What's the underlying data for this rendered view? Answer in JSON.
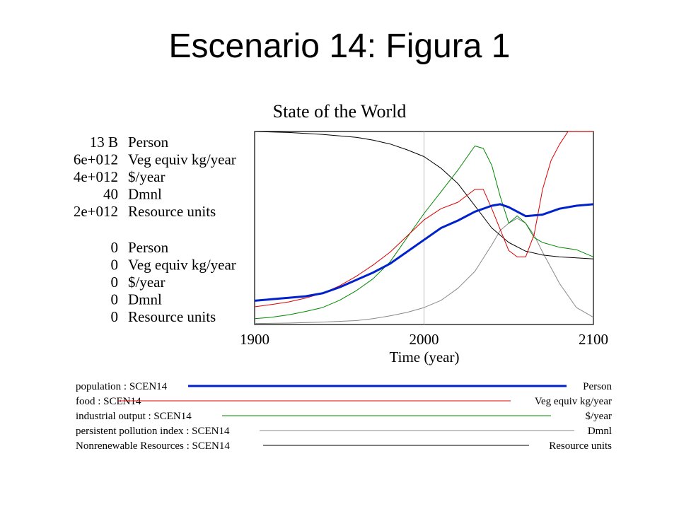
{
  "slide": {
    "title": "Escenario 14: Figura 1"
  },
  "colors": {
    "population": "#0022cc",
    "food": "#dd0000",
    "industrial": "#008800",
    "pollution": "#888888",
    "resources": "#000000",
    "grid": "#bbbbbb"
  },
  "chart_data": {
    "type": "line",
    "title": "State of the World",
    "xlabel": "Time (year)",
    "xlim": [
      1900,
      2100
    ],
    "x_ticks": [
      "1900",
      "2000",
      "2100"
    ],
    "grid": "vertical line at 2000",
    "legend_placement": "bottom",
    "axes_top": [
      {
        "value": "13 B",
        "unit": "Person"
      },
      {
        "value": "6e+012",
        "unit": "Veg equiv kg/year"
      },
      {
        "value": "4e+012",
        "unit": "$/year"
      },
      {
        "value": "40",
        "unit": "Dmnl"
      },
      {
        "value": "2e+012",
        "unit": "Resource units"
      }
    ],
    "axes_bottom": [
      {
        "value": "0",
        "unit": "Person"
      },
      {
        "value": "0",
        "unit": "Veg equiv kg/year"
      },
      {
        "value": "0",
        "unit": "$/year"
      },
      {
        "value": "0",
        "unit": "Dmnl"
      },
      {
        "value": "0",
        "unit": "Resource units"
      }
    ],
    "series": [
      {
        "key": "population",
        "name": "population : SCEN14",
        "unit": "Person",
        "ymax": 13000000000,
        "x": [
          1900,
          1910,
          1920,
          1930,
          1940,
          1950,
          1960,
          1970,
          1980,
          1990,
          2000,
          2010,
          2020,
          2030,
          2040,
          2045,
          2050,
          2060,
          2070,
          2080,
          2090,
          2100
        ],
        "y": [
          1600000000.0,
          1700000000.0,
          1800000000.0,
          1900000000.0,
          2100000000.0,
          2500000000.0,
          3000000000.0,
          3500000000.0,
          4100000000.0,
          4900000000.0,
          5700000000.0,
          6500000000.0,
          7000000000.0,
          7600000000.0,
          8000000000.0,
          8100000000.0,
          7900000000.0,
          7300000000.0,
          7400000000.0,
          7800000000.0,
          8000000000.0,
          8100000000.0
        ]
      },
      {
        "key": "food",
        "name": "food : SCEN14",
        "unit": "Veg equiv kg/year",
        "ymax": 6000000000000,
        "x": [
          1900,
          1910,
          1920,
          1930,
          1940,
          1950,
          1960,
          1970,
          1980,
          1990,
          2000,
          2010,
          2020,
          2030,
          2035,
          2040,
          2050,
          2055,
          2060,
          2065,
          2070,
          2075,
          2080,
          2085,
          2090,
          2100
        ],
        "y": [
          550000000000.0,
          620000000000.0,
          700000000000.0,
          820000000000.0,
          970000000000.0,
          1200000000000.0,
          1500000000000.0,
          1850000000000.0,
          2250000000000.0,
          2750000000000.0,
          3250000000000.0,
          3600000000000.0,
          3800000000000.0,
          4200000000000.0,
          4200000000000.0,
          3600000000000.0,
          2300000000000.0,
          2100000000000.0,
          2100000000000.0,
          2800000000000.0,
          4200000000000.0,
          5100000000000.0,
          5600000000000.0,
          6000000000000.0,
          6000000000000.0,
          6000000000000.0
        ]
      },
      {
        "key": "industrial",
        "name": "industrial output : SCEN14",
        "unit": "$/year",
        "ymax": 4000000000000,
        "x": [
          1900,
          1910,
          1920,
          1930,
          1940,
          1950,
          1960,
          1970,
          1980,
          1990,
          2000,
          2010,
          2020,
          2025,
          2030,
          2035,
          2040,
          2045,
          2050,
          2055,
          2060,
          2065,
          2070,
          2080,
          2090,
          2100
        ],
        "y": [
          120000000000.0,
          150000000000.0,
          200000000000.0,
          270000000000.0,
          350000000000.0,
          500000000000.0,
          700000000000.0,
          950000000000.0,
          1300000000000.0,
          1800000000000.0,
          2300000000000.0,
          2750000000000.0,
          3200000000000.0,
          3450000000000.0,
          3700000000000.0,
          3650000000000.0,
          3300000000000.0,
          2650000000000.0,
          2100000000000.0,
          2250000000000.0,
          2100000000000.0,
          1800000000000.0,
          1700000000000.0,
          1600000000000.0,
          1550000000000.0,
          1400000000000.0
        ]
      },
      {
        "key": "pollution",
        "name": "persistent pollution index : SCEN14",
        "unit": "Dmnl",
        "ymax": 40,
        "x": [
          1900,
          1920,
          1940,
          1960,
          1970,
          1980,
          1990,
          2000,
          2010,
          2020,
          2030,
          2040,
          2045,
          2050,
          2055,
          2060,
          2065,
          2070,
          2080,
          2090,
          2100
        ],
        "y": [
          0.2,
          0.3,
          0.5,
          0.8,
          1.2,
          1.8,
          2.5,
          3.5,
          5.0,
          7.5,
          11.0,
          16.5,
          19.5,
          21.0,
          22.0,
          21.0,
          18.5,
          15.0,
          8.5,
          3.5,
          1.5
        ]
      },
      {
        "key": "resources",
        "name": "Nonrenewable Resources : SCEN14",
        "unit": "Resource units",
        "ymax": 2000000000000,
        "x": [
          1900,
          1920,
          1940,
          1960,
          1970,
          1980,
          1990,
          2000,
          2010,
          2020,
          2030,
          2040,
          2050,
          2060,
          2070,
          2080,
          2090,
          2100
        ],
        "y": [
          2000000000000.0,
          1990000000000.0,
          1970000000000.0,
          1940000000000.0,
          1910000000000.0,
          1870000000000.0,
          1810000000000.0,
          1740000000000.0,
          1620000000000.0,
          1460000000000.0,
          1230000000000.0,
          1000000000000.0,
          850000000000.0,
          760000000000.0,
          720000000000.0,
          700000000000.0,
          690000000000.0,
          680000000000.0
        ]
      }
    ]
  }
}
